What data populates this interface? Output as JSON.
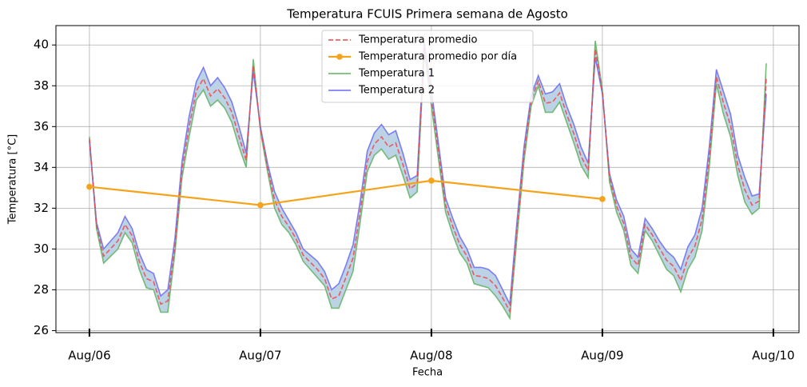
{
  "chart_data": {
    "type": "line",
    "title": "Temperatura FCUIS Primera semana de Agosto",
    "xlabel": "Fecha",
    "ylabel": "Temperatura [°C]",
    "x": [
      0,
      1,
      2,
      4,
      5,
      6,
      7,
      8,
      9,
      10,
      11,
      12,
      13,
      14,
      15,
      16,
      17,
      18,
      19,
      20,
      21,
      22,
      23,
      24,
      25,
      26,
      27,
      28,
      29,
      30,
      31,
      32,
      33,
      34,
      35,
      36,
      37,
      38,
      39,
      40,
      41,
      42,
      43,
      44,
      45,
      46,
      47,
      48,
      50,
      51,
      52,
      53,
      54,
      55,
      56,
      57,
      58,
      59,
      60,
      61,
      62,
      63,
      64,
      65,
      66,
      67,
      68,
      69,
      70,
      71,
      72,
      73,
      74,
      75,
      76,
      77,
      78,
      79,
      80,
      81,
      82,
      83,
      84,
      85,
      86,
      87,
      88,
      89,
      90,
      91,
      92,
      93,
      94,
      95
    ],
    "series": [
      {
        "name": "Temperatura promedio",
        "color": "#f0454a",
        "linestyle": "dashed",
        "values": [
          35.4,
          31.15,
          29.65,
          30.4,
          31.2,
          30.65,
          29.4,
          28.55,
          28.4,
          27.3,
          27.45,
          30.15,
          33.9,
          36.0,
          37.75,
          38.35,
          37.5,
          37.85,
          37.4,
          36.7,
          35.5,
          34.35,
          39.0,
          35.9,
          34.0,
          32.4,
          31.6,
          31.1,
          30.5,
          29.7,
          29.35,
          29.0,
          28.55,
          27.55,
          27.7,
          28.6,
          29.55,
          31.8,
          34.3,
          35.15,
          35.5,
          35.0,
          35.2,
          34.15,
          32.95,
          33.2,
          39.9,
          37.4,
          32.15,
          31.1,
          30.2,
          29.65,
          28.7,
          28.65,
          28.55,
          28.2,
          27.6,
          26.95,
          30.9,
          34.65,
          37.25,
          38.25,
          37.15,
          37.2,
          37.65,
          36.6,
          35.65,
          34.55,
          33.85,
          39.8,
          37.7,
          33.5,
          32.1,
          31.25,
          29.6,
          29.2,
          31.2,
          30.7,
          30.05,
          29.45,
          29.15,
          28.45,
          29.55,
          30.15,
          31.45,
          34.5,
          38.45,
          37.15,
          36.05,
          34.1,
          32.9,
          32.15,
          32.35,
          38.35
        ]
      },
      {
        "name": "Temperatura promedio por día",
        "color": "#f5a31a",
        "marker": "o",
        "x": [
          0,
          24,
          48,
          72
        ],
        "values": [
          33.05,
          32.15,
          33.35,
          32.45
        ]
      },
      {
        "name": "Temperatura 1",
        "color": "#5fb25f",
        "values": [
          35.5,
          31.0,
          29.3,
          30.0,
          30.8,
          30.3,
          29.0,
          28.1,
          28.0,
          26.9,
          26.9,
          29.8,
          33.5,
          35.5,
          37.3,
          37.8,
          37.0,
          37.3,
          36.9,
          36.2,
          35.0,
          34.0,
          39.3,
          35.8,
          33.8,
          32.0,
          31.2,
          30.8,
          30.2,
          29.4,
          29.0,
          28.6,
          28.2,
          27.1,
          27.1,
          28.0,
          28.9,
          31.3,
          33.8,
          34.6,
          34.9,
          34.4,
          34.6,
          33.6,
          32.5,
          32.8,
          39.7,
          37.0,
          31.8,
          30.7,
          29.8,
          29.3,
          28.3,
          28.2,
          28.1,
          27.7,
          27.2,
          26.6,
          30.5,
          34.3,
          37.0,
          38.0,
          36.7,
          36.7,
          37.2,
          36.2,
          35.2,
          34.1,
          33.5,
          40.2,
          37.8,
          33.3,
          31.8,
          30.9,
          29.2,
          28.8,
          30.9,
          30.4,
          29.7,
          29.0,
          28.7,
          27.9,
          29.0,
          29.6,
          30.9,
          34.0,
          38.1,
          36.6,
          35.5,
          33.6,
          32.3,
          31.7,
          32.0,
          39.1
        ]
      },
      {
        "name": "Temperatura 2",
        "color": "#6a6af2",
        "values": [
          35.3,
          31.3,
          30.0,
          30.8,
          31.6,
          31.0,
          29.8,
          29.0,
          28.8,
          27.7,
          28.0,
          30.5,
          34.3,
          36.5,
          38.2,
          38.9,
          38.0,
          38.4,
          37.9,
          37.2,
          36.0,
          34.7,
          38.7,
          36.0,
          34.2,
          32.8,
          32.0,
          31.4,
          30.8,
          30.0,
          29.7,
          29.4,
          28.9,
          28.0,
          28.3,
          29.2,
          30.2,
          32.3,
          34.8,
          35.7,
          36.1,
          35.6,
          35.8,
          34.7,
          33.4,
          33.6,
          40.1,
          37.8,
          32.5,
          31.5,
          30.6,
          30.0,
          29.1,
          29.1,
          29.0,
          28.7,
          28.0,
          27.3,
          31.3,
          35.0,
          37.5,
          38.5,
          37.6,
          37.7,
          38.1,
          37.0,
          36.1,
          35.0,
          34.2,
          39.4,
          37.6,
          33.7,
          32.4,
          31.6,
          30.0,
          29.6,
          31.5,
          31.0,
          30.4,
          29.9,
          29.6,
          29.0,
          30.1,
          30.7,
          32.0,
          35.0,
          38.8,
          37.7,
          36.6,
          34.6,
          33.5,
          32.6,
          32.7,
          37.6
        ]
      }
    ],
    "fill_color": "#bcd3e6",
    "xlim": [
      -4.7,
      99.6
    ],
    "xticks": [
      {
        "value": 0,
        "label": "Aug/06"
      },
      {
        "value": 24,
        "label": "Aug/07"
      },
      {
        "value": 48,
        "label": "Aug/08"
      },
      {
        "value": 72,
        "label": "Aug/09"
      },
      {
        "value": 96,
        "label": "Aug/10"
      }
    ],
    "ylim": [
      25.9,
      40.95
    ],
    "yticks": [
      26,
      28,
      30,
      32,
      34,
      36,
      38,
      40
    ],
    "grid": true,
    "legend": "upper center"
  }
}
